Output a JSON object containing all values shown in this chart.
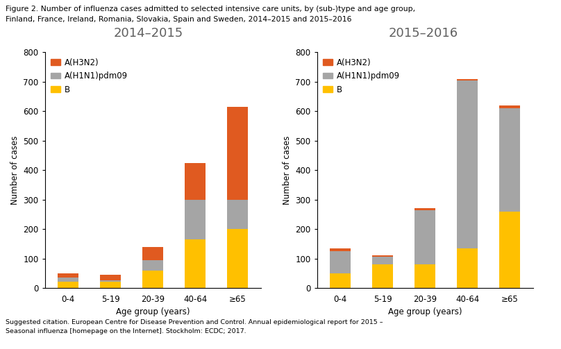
{
  "title_line1": "Figure 2. Number of influenza cases admitted to selected intensive care units, by (sub-)type and age group,",
  "title_line2": "Finland, France, Ireland, Romania, Slovakia, Spain and Sweden, 2014–2015 and 2015–2016",
  "subtitle_left": "2014–2015",
  "subtitle_right": "2015–2016",
  "age_groups": [
    "0-4",
    "5-19",
    "20-39",
    "40-64",
    "≥65"
  ],
  "colors": {
    "B": "#FFC000",
    "H1N1": "#A5A5A5",
    "H3N2": "#E05A20"
  },
  "data_2014": {
    "B": [
      20,
      20,
      60,
      165,
      200
    ],
    "H1N1": [
      15,
      5,
      35,
      135,
      100
    ],
    "H3N2": [
      15,
      20,
      45,
      125,
      315
    ]
  },
  "data_2015": {
    "B": [
      50,
      80,
      80,
      135,
      260
    ],
    "H1N1": [
      75,
      25,
      185,
      570,
      350
    ],
    "H3N2": [
      10,
      5,
      5,
      5,
      10
    ]
  },
  "ylabel": "Number of cases",
  "xlabel": "Age group (years)",
  "ylim": [
    0,
    800
  ],
  "yticks": [
    0,
    100,
    200,
    300,
    400,
    500,
    600,
    700,
    800
  ],
  "citation_line1": "Suggested citation. European Centre for Disease Prevention and Control. Annual epidemiological report for 2015 –",
  "citation_line2": "Seasonal influenza [homepage on the Internet]. Stockholm: ECDC; 2017."
}
